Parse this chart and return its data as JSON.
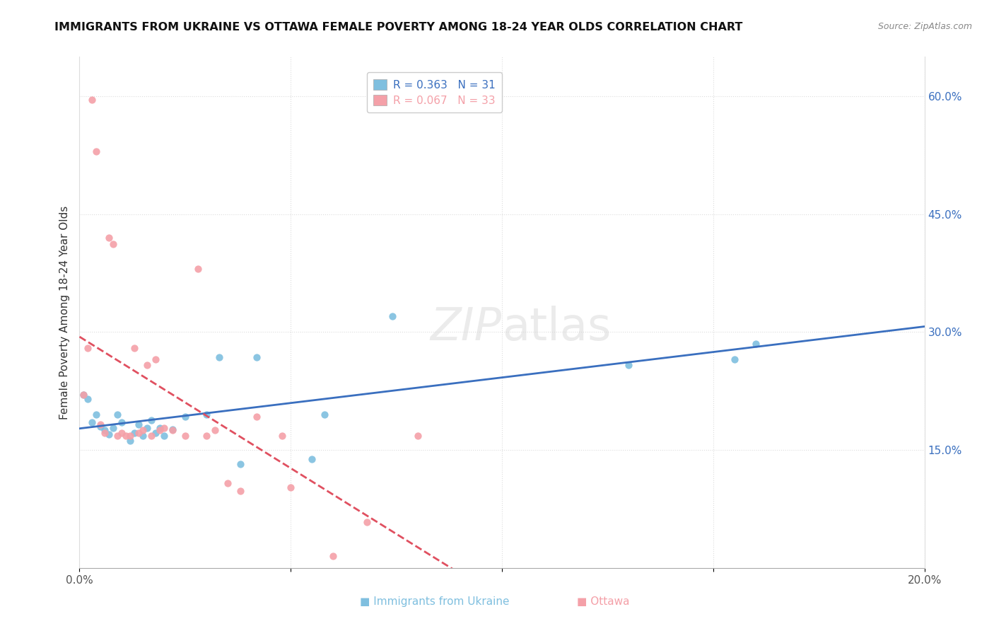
{
  "title": "IMMIGRANTS FROM UKRAINE VS OTTAWA FEMALE POVERTY AMONG 18-24 YEAR OLDS CORRELATION CHART",
  "source": "Source: ZipAtlas.com",
  "ylabel": "Female Poverty Among 18-24 Year Olds",
  "xlabel_label1": "Immigrants from Ukraine",
  "xlabel_label2": "Ottawa",
  "xmin": 0.0,
  "xmax": 0.2,
  "ymin": 0.0,
  "ymax": 0.65,
  "right_yticks": [
    0.15,
    0.3,
    0.45,
    0.6
  ],
  "right_yticklabels": [
    "15.0%",
    "30.0%",
    "45.0%",
    "60.0%"
  ],
  "legend_r1": "R = 0.363",
  "legend_n1": "N = 31",
  "legend_r2": "R = 0.067",
  "legend_n2": "N = 33",
  "color_ukraine": "#7fbfdf",
  "color_ottawa": "#f4a0a8",
  "trendline_ukraine_color": "#3a6fbf",
  "trendline_ottawa_color": "#e05060",
  "ukraine_x": [
    0.001,
    0.002,
    0.003,
    0.004,
    0.005,
    0.006,
    0.007,
    0.008,
    0.009,
    0.01,
    0.012,
    0.013,
    0.014,
    0.015,
    0.016,
    0.017,
    0.018,
    0.019,
    0.02,
    0.022,
    0.025,
    0.03,
    0.033,
    0.038,
    0.042,
    0.055,
    0.058,
    0.074,
    0.13,
    0.155,
    0.16
  ],
  "ukraine_y": [
    0.22,
    0.215,
    0.185,
    0.195,
    0.18,
    0.175,
    0.17,
    0.178,
    0.195,
    0.185,
    0.162,
    0.172,
    0.182,
    0.168,
    0.178,
    0.188,
    0.172,
    0.178,
    0.168,
    0.176,
    0.192,
    0.195,
    0.268,
    0.132,
    0.268,
    0.138,
    0.195,
    0.32,
    0.258,
    0.265,
    0.285
  ],
  "ottawa_x": [
    0.001,
    0.002,
    0.003,
    0.004,
    0.005,
    0.006,
    0.007,
    0.008,
    0.009,
    0.01,
    0.011,
    0.012,
    0.013,
    0.014,
    0.015,
    0.016,
    0.017,
    0.018,
    0.019,
    0.02,
    0.022,
    0.025,
    0.028,
    0.03,
    0.032,
    0.035,
    0.038,
    0.042,
    0.048,
    0.05,
    0.06,
    0.068,
    0.08
  ],
  "ottawa_y": [
    0.22,
    0.28,
    0.595,
    0.53,
    0.182,
    0.172,
    0.42,
    0.412,
    0.168,
    0.172,
    0.168,
    0.168,
    0.28,
    0.172,
    0.175,
    0.258,
    0.168,
    0.265,
    0.175,
    0.178,
    0.175,
    0.168,
    0.38,
    0.168,
    0.175,
    0.108,
    0.098,
    0.192,
    0.168,
    0.102,
    0.015,
    0.058,
    0.168
  ]
}
